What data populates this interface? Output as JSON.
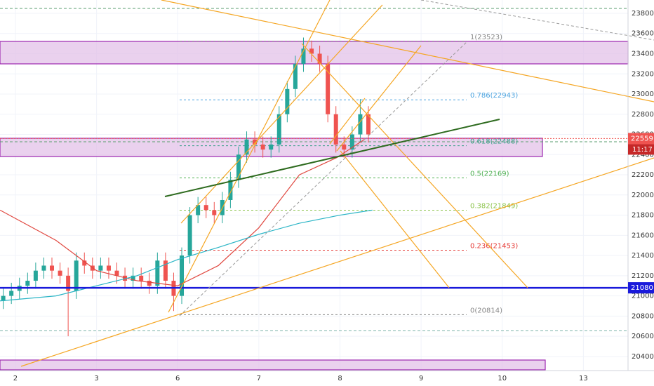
{
  "chart_data": {
    "type": "candlestick",
    "x": [
      -0.15,
      -0.05,
      0.05,
      0.15,
      0.25,
      0.35,
      0.45,
      0.55,
      0.65,
      0.75,
      0.85,
      0.95,
      1.05,
      1.15,
      1.25,
      1.35,
      1.45,
      1.55,
      1.65,
      1.75,
      1.85,
      1.95,
      2.05,
      2.15,
      2.25,
      2.35,
      2.45,
      2.55,
      2.65,
      2.75,
      2.85,
      2.95,
      3.05,
      3.15,
      3.25,
      3.35,
      3.45,
      3.55,
      3.65,
      3.75,
      3.85,
      3.95,
      4.05,
      4.15,
      4.25,
      4.35
    ],
    "open": [
      20950,
      21000,
      21050,
      21100,
      21150,
      21250,
      21300,
      21250,
      21200,
      21050,
      21350,
      21300,
      21250,
      21300,
      21250,
      21200,
      21150,
      21200,
      21150,
      21100,
      21350,
      21150,
      21000,
      21400,
      21800,
      21900,
      21850,
      21800,
      21950,
      22150,
      22400,
      22550,
      22500,
      22450,
      22500,
      22800,
      23050,
      23300,
      23450,
      23400,
      23300,
      22800,
      22500,
      22450,
      22600,
      22800
    ],
    "high": [
      21080,
      21130,
      21180,
      21230,
      21330,
      21380,
      21380,
      21330,
      21280,
      21430,
      21430,
      21380,
      21380,
      21380,
      21330,
      21280,
      21280,
      21280,
      21230,
      21430,
      21430,
      21230,
      21480,
      21880,
      21980,
      21980,
      21930,
      22030,
      22230,
      22480,
      22630,
      22630,
      22580,
      22580,
      22880,
      23130,
      23380,
      23560,
      23530,
      23480,
      23380,
      22880,
      22580,
      22680,
      22950,
      22880
    ],
    "low": [
      20870,
      20920,
      20970,
      21020,
      21070,
      21170,
      21170,
      21120,
      20600,
      20970,
      21220,
      21170,
      21170,
      21170,
      21120,
      21070,
      21070,
      21070,
      21020,
      21020,
      21070,
      20850,
      20920,
      21320,
      21720,
      21770,
      21720,
      21720,
      21870,
      22070,
      22320,
      22420,
      22370,
      22370,
      22420,
      22720,
      22970,
      23220,
      23320,
      23220,
      22720,
      22420,
      22370,
      22370,
      22520,
      22520
    ],
    "close": [
      21000,
      21050,
      21100,
      21150,
      21250,
      21300,
      21250,
      21200,
      21050,
      21350,
      21300,
      21250,
      21300,
      21250,
      21200,
      21150,
      21200,
      21150,
      21100,
      21350,
      21150,
      21000,
      21400,
      21800,
      21900,
      21850,
      21800,
      21950,
      22150,
      22400,
      22550,
      22500,
      22450,
      22500,
      22800,
      23050,
      23300,
      23450,
      23400,
      23300,
      22800,
      22500,
      22450,
      22600,
      22800,
      22600
    ],
    "up_color": "#26a69a",
    "down_color": "#ef5350",
    "moving_averages": [
      {
        "color": "#e0473f",
        "x": [
          -0.19,
          0.5,
          1.0,
          1.5,
          2.0,
          2.5,
          3.0,
          3.5,
          3.96,
          4.3
        ],
        "values": [
          21850,
          21550,
          21250,
          21150,
          21100,
          21300,
          21675,
          22200,
          22370,
          22550
        ]
      },
      {
        "color": "#2bb5c6",
        "x": [
          -0.19,
          0.5,
          1.0,
          1.5,
          2.0,
          2.5,
          3.0,
          3.5,
          4.0,
          4.4
        ],
        "values": [
          20950,
          21000,
          21100,
          21200,
          21360,
          21480,
          21610,
          21720,
          21800,
          21850
        ]
      }
    ],
    "fib_levels": [
      {
        "label": "1(23523)",
        "price": 23523,
        "color": "#888888"
      },
      {
        "label": "0.786(22943)",
        "price": 22943,
        "color": "#4aa3df"
      },
      {
        "label": "0.618(22488)",
        "price": 22488,
        "color": "#3aa08a"
      },
      {
        "label": "0.5(22169)",
        "price": 22169,
        "color": "#4caf50"
      },
      {
        "label": "0.382(21849)",
        "price": 21849,
        "color": "#8bc34a"
      },
      {
        "label": "0.236(21453)",
        "price": 21453,
        "color": "#e53935"
      },
      {
        "label": "0(20814)",
        "price": 20814,
        "color": "#888888"
      }
    ],
    "current_price": 22559,
    "countdown": "11:17",
    "support_level": 21080,
    "xlim": [
      -0.19,
      7.55
    ],
    "xticks": [
      {
        "value": 0,
        "label": "2"
      },
      {
        "value": 1,
        "label": "3"
      },
      {
        "value": 2,
        "label": "6"
      },
      {
        "value": 3,
        "label": "7"
      },
      {
        "value": 4,
        "label": "8"
      },
      {
        "value": 5,
        "label": "9"
      },
      {
        "value": 6,
        "label": "10"
      },
      {
        "value": 7,
        "label": "13"
      }
    ],
    "ylim": [
      20260,
      23932
    ],
    "yticks": [
      20400,
      20600,
      20800,
      21000,
      21200,
      21400,
      21600,
      21800,
      22000,
      22200,
      22400,
      22600,
      22800,
      23000,
      23200,
      23400,
      23600,
      23800
    ]
  }
}
